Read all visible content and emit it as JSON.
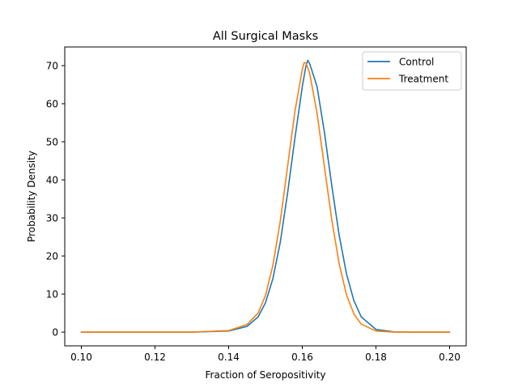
{
  "chart_data": {
    "type": "line",
    "title": "All Surgical Masks",
    "xlabel": "Fraction of Seropositivity",
    "ylabel": "Probability Density",
    "xlim": [
      0.0955,
      0.2045
    ],
    "ylim": [
      -3.6,
      74.9
    ],
    "x_ticks": [
      0.1,
      0.12,
      0.14,
      0.16,
      0.18,
      0.2
    ],
    "x_tick_labels": [
      "0.10",
      "0.12",
      "0.14",
      "0.16",
      "0.18",
      "0.20"
    ],
    "y_ticks": [
      0,
      10,
      20,
      30,
      40,
      50,
      60,
      70
    ],
    "y_tick_labels": [
      "0",
      "10",
      "20",
      "30",
      "40",
      "50",
      "60",
      "70"
    ],
    "grid": false,
    "legend_position": "top-right",
    "series": [
      {
        "name": "Control",
        "color": "#1f77b4",
        "x": [
          0.1,
          0.13,
          0.14,
          0.145,
          0.148,
          0.15,
          0.152,
          0.154,
          0.156,
          0.158,
          0.16,
          0.161,
          0.1615,
          0.162,
          0.164,
          0.166,
          0.168,
          0.17,
          0.172,
          0.174,
          0.176,
          0.18,
          0.185,
          0.19,
          0.2
        ],
        "y": [
          0.0,
          0.0,
          0.3,
          1.5,
          4.0,
          7.7,
          14.0,
          23.5,
          36.5,
          51.0,
          64.5,
          70.0,
          71.4,
          70.5,
          64.5,
          52.5,
          38.5,
          25.5,
          15.3,
          8.3,
          4.0,
          0.7,
          0.05,
          0.0,
          0.0
        ]
      },
      {
        "name": "Treatment",
        "color": "#ff7f0e",
        "x": [
          0.1,
          0.13,
          0.14,
          0.145,
          0.148,
          0.15,
          0.152,
          0.154,
          0.156,
          0.158,
          0.16,
          0.1605,
          0.161,
          0.162,
          0.164,
          0.166,
          0.168,
          0.17,
          0.172,
          0.174,
          0.176,
          0.18,
          0.185,
          0.19,
          0.2
        ],
        "y": [
          0.0,
          0.0,
          0.4,
          2.0,
          5.0,
          9.6,
          17.5,
          29.0,
          43.5,
          58.0,
          69.0,
          70.8,
          70.7,
          68.0,
          57.5,
          43.5,
          29.5,
          18.0,
          9.8,
          4.8,
          2.1,
          0.3,
          0.0,
          0.0,
          0.0
        ]
      }
    ]
  }
}
